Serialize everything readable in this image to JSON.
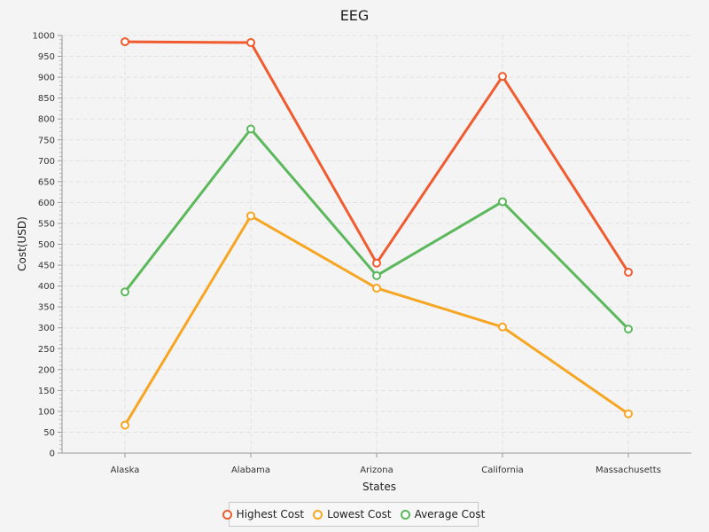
{
  "chart_data": {
    "type": "line",
    "title": "EEG",
    "xlabel": "States",
    "ylabel": "Cost(USD)",
    "categories": [
      "Alaska",
      "Alabama",
      "Arizona",
      "California",
      "Massachusetts"
    ],
    "ylim": [
      0,
      1000
    ],
    "y_ticks": [
      0,
      50,
      100,
      150,
      200,
      250,
      300,
      350,
      400,
      450,
      500,
      550,
      600,
      650,
      700,
      750,
      800,
      850,
      900,
      950,
      1000
    ],
    "grid": true,
    "legend_position": "bottom",
    "series": [
      {
        "name": "Highest Cost",
        "color": "#f05b2f",
        "values": [
          985,
          983,
          455,
          902,
          433
        ]
      },
      {
        "name": "Lowest Cost",
        "color": "#f6a623",
        "values": [
          67,
          568,
          395,
          302,
          94
        ]
      },
      {
        "name": "Average Cost",
        "color": "#5cb85c",
        "values": [
          386,
          776,
          425,
          602,
          297
        ]
      }
    ]
  }
}
